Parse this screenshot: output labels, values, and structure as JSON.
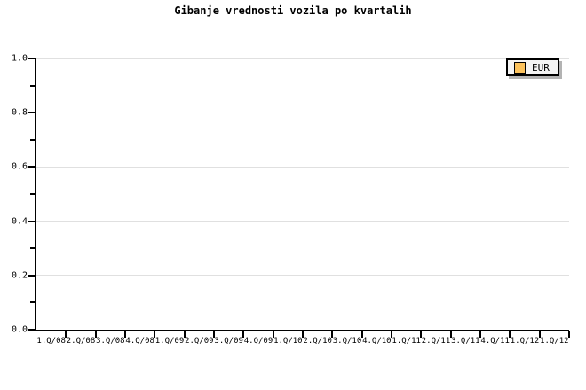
{
  "chart_data": {
    "type": "line",
    "title": "Gibanje vrednosti vozila po kvartalih",
    "categories": [
      "1.Q/08",
      "2.Q/08",
      "3.Q/08",
      "4.Q/08",
      "1.Q/09",
      "2.Q/09",
      "3.Q/09",
      "4.Q/09",
      "1.Q/10",
      "2.Q/10",
      "3.Q/10",
      "4.Q/10",
      "1.Q/11",
      "2.Q/11",
      "3.Q/11",
      "4.Q/11",
      "1.Q/12",
      "1.Q/12"
    ],
    "series": [
      {
        "name": "EUR",
        "color": "#FBC25D",
        "values": []
      }
    ],
    "xlabel": "",
    "ylabel": "",
    "ylim": [
      0.0,
      1.0
    ],
    "y_ticks": [
      0.0,
      0.2,
      0.4,
      0.6,
      0.8,
      1.0
    ],
    "y_tick_labels": [
      "0.0",
      "0.2",
      "0.4",
      "0.6",
      "0.8",
      "1.0"
    ],
    "y_minor_ticks": [
      0.1,
      0.3,
      0.5,
      0.7,
      0.9
    ],
    "grid": true,
    "legend_position": "top-right"
  },
  "legend": {
    "items": [
      {
        "label": "EUR",
        "swatch_color": "#FBC25D"
      }
    ]
  },
  "colors": {
    "background": "#ffffff",
    "axis": "#000000",
    "gridline": "#e0e0e0",
    "legend_background": "#f4f4f4",
    "legend_shadow": "#b3b3b3",
    "text": "#000000"
  }
}
